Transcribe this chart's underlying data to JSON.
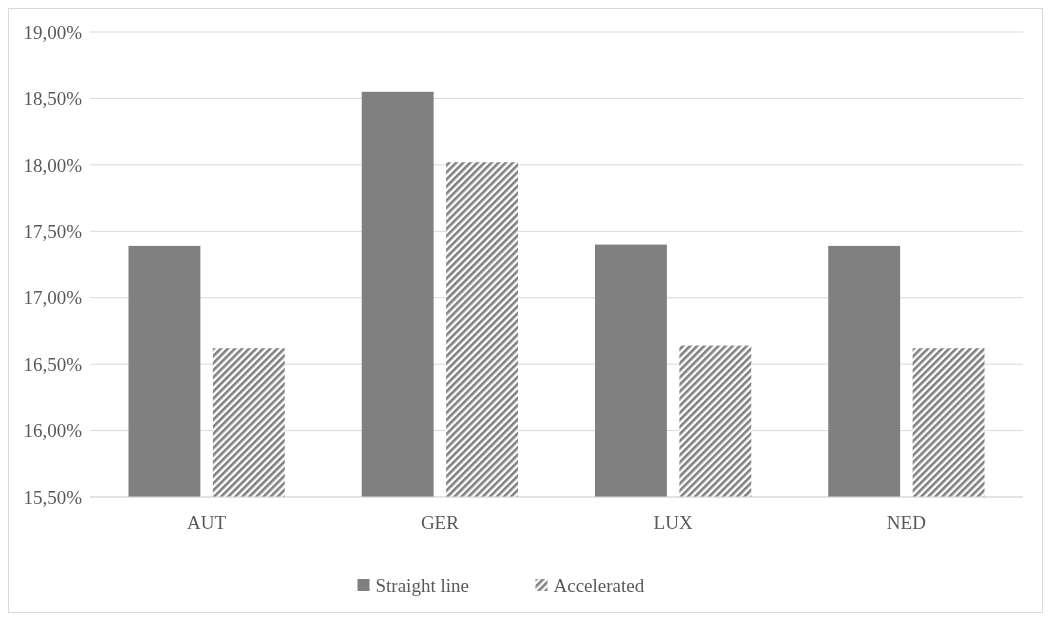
{
  "chart_data": {
    "type": "bar",
    "categories": [
      "AUT",
      "GER",
      "LUX",
      "NED"
    ],
    "series": [
      {
        "name": "Straight line",
        "color": "#808080",
        "values": [
          17.39,
          18.55,
          17.4,
          17.39
        ]
      },
      {
        "name": "Accelerated",
        "color": "#808080",
        "values": [
          16.62,
          18.02,
          16.64,
          16.62
        ]
      }
    ],
    "ylim": [
      15.5,
      19
    ],
    "yticks": [
      {
        "value": 15.5,
        "label": "15,50%"
      },
      {
        "value": 16,
        "label": "16,00%"
      },
      {
        "value": 16.5,
        "label": "16,50%"
      },
      {
        "value": 17,
        "label": "17,00%"
      },
      {
        "value": 17.5,
        "label": "17,50%"
      },
      {
        "value": 18,
        "label": "18,00%"
      },
      {
        "value": 18.5,
        "label": "18,50%"
      },
      {
        "value": 19,
        "label": "19,00%"
      }
    ],
    "grid": "y",
    "legend": "bottom"
  }
}
